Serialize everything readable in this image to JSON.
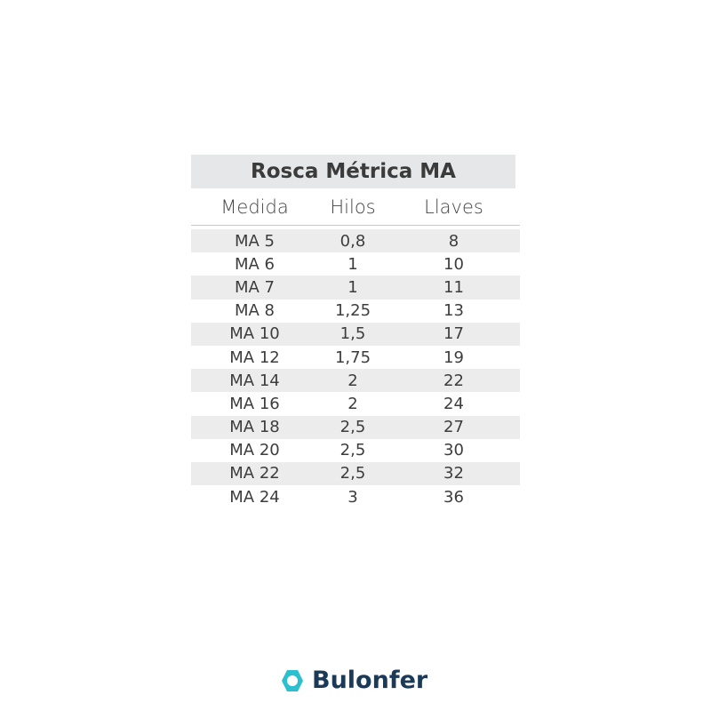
{
  "title": "Rosca Métrica MA",
  "headers": [
    "Medida",
    "Hilos",
    "Llaves"
  ],
  "rows": [
    [
      "MA 5",
      "0,8",
      "8"
    ],
    [
      "MA 6",
      "1",
      "10"
    ],
    [
      "MA 7",
      "1",
      "11"
    ],
    [
      "MA 8",
      "1,25",
      "13"
    ],
    [
      "MA 10",
      "1,5",
      "17"
    ],
    [
      "MA 12",
      "1,75",
      "19"
    ],
    [
      "MA 14",
      "2",
      "22"
    ],
    [
      "MA 16",
      "2",
      "24"
    ],
    [
      "MA 18",
      "2,5",
      "27"
    ],
    [
      "MA 20",
      "2,5",
      "30"
    ],
    [
      "MA 22",
      "2,5",
      "32"
    ],
    [
      "MA 24",
      "3",
      "36"
    ]
  ],
  "brand": {
    "name": "Bulonfer",
    "icon": "hexagon-ring-icon",
    "color": "#1b3a57",
    "accent": "#2bbfcf"
  }
}
